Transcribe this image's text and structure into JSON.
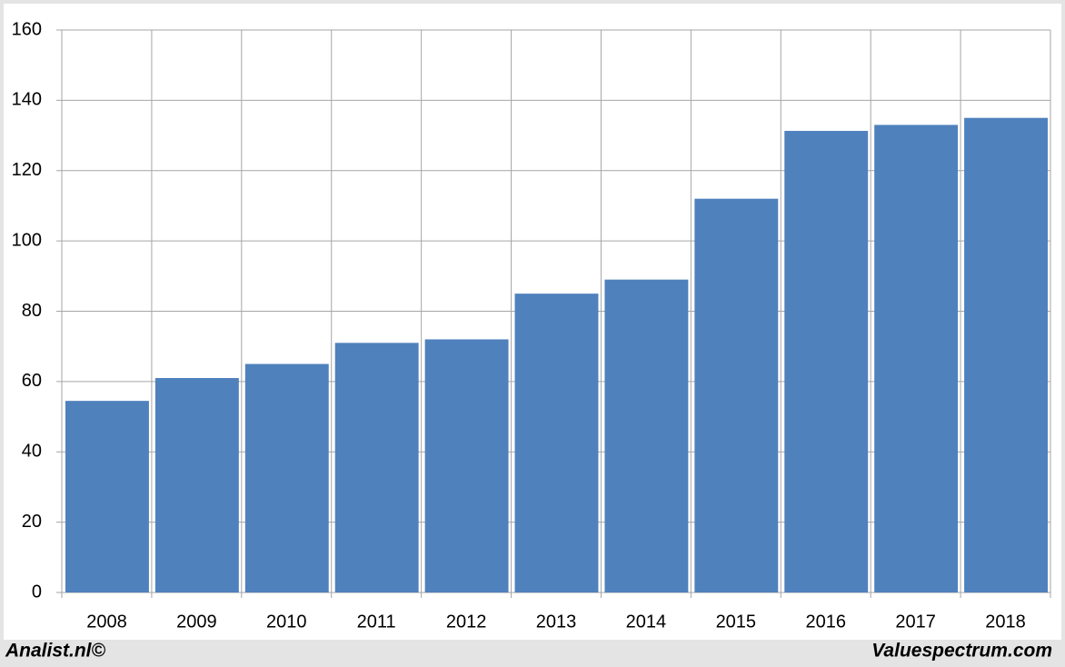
{
  "chart_data": {
    "type": "bar",
    "categories": [
      "2008",
      "2009",
      "2010",
      "2011",
      "2012",
      "2013",
      "2014",
      "2015",
      "2016",
      "2017",
      "2018"
    ],
    "values": [
      54.5,
      61,
      65,
      71,
      72,
      85,
      89,
      112,
      131.3,
      133,
      135
    ],
    "color": "#4f81bd",
    "ylim": [
      0,
      160
    ],
    "yticks": [
      0,
      20,
      40,
      60,
      80,
      100,
      120,
      140,
      160
    ],
    "grid": true
  },
  "footer": {
    "left": "Analist.nl©",
    "right": "Valuespectrum.com"
  }
}
